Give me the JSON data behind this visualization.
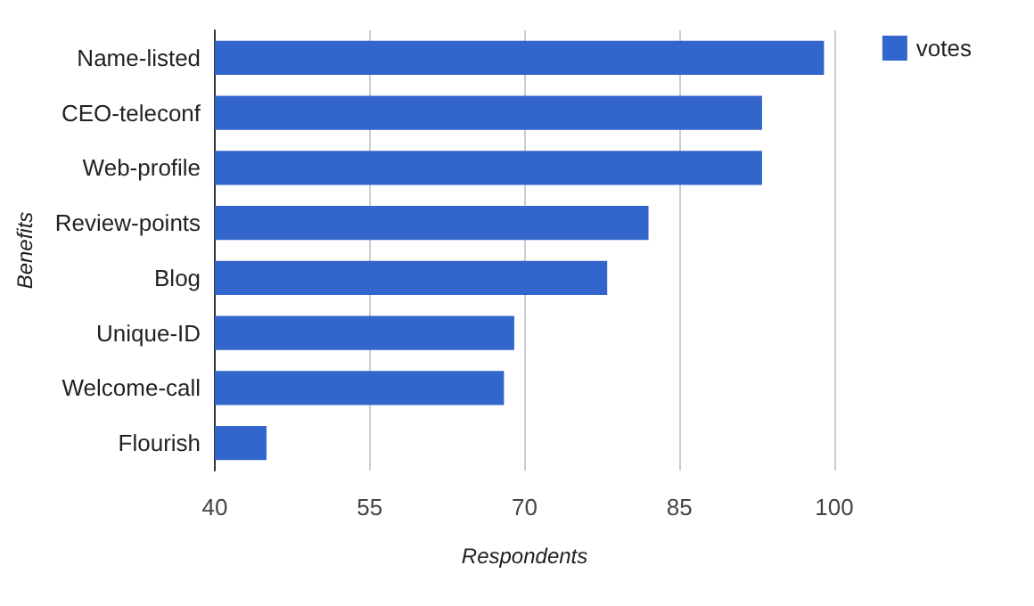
{
  "chart_data": {
    "type": "bar",
    "orientation": "horizontal",
    "xlabel": "Respondents",
    "ylabel": "Benefits",
    "categories": [
      "Name-listed",
      "CEO-teleconf",
      "Web-profile",
      "Review-points",
      "Blog",
      "Unique-ID",
      "Welcome-call",
      "Flourish"
    ],
    "series": [
      {
        "name": "votes",
        "color": "#3366cc",
        "values": [
          99,
          93,
          93,
          82,
          78,
          69,
          68,
          45
        ]
      }
    ],
    "xlim": [
      40,
      100
    ],
    "xticks": [
      40,
      55,
      70,
      85,
      100
    ],
    "grid": "x",
    "legend": "top right"
  }
}
